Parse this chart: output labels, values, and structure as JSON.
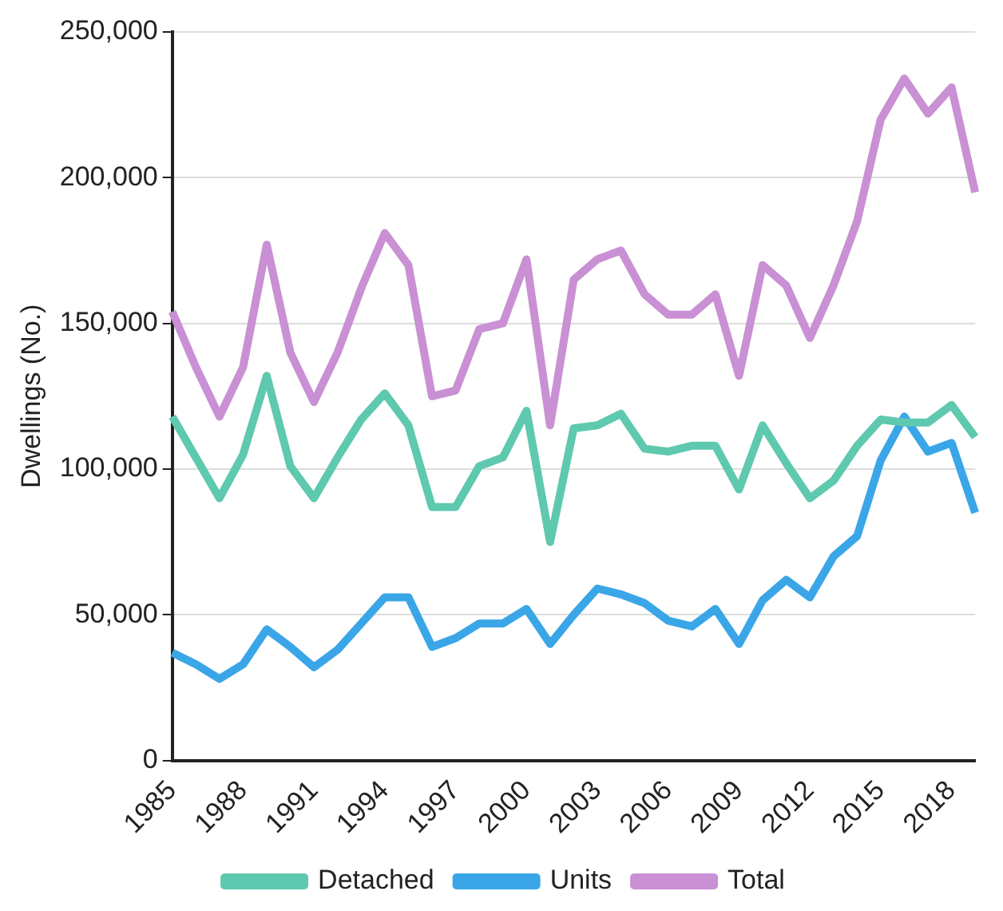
{
  "chart_data": {
    "type": "line",
    "ylabel": "Dwellings (No.)",
    "categories": [
      "1985",
      null,
      null,
      "1988",
      null,
      null,
      "1991",
      null,
      null,
      "1994",
      null,
      null,
      "1997",
      null,
      null,
      "2000",
      null,
      null,
      "2003",
      null,
      null,
      "2006",
      null,
      null,
      "2009",
      null,
      null,
      "2012",
      null,
      null,
      "2015",
      null,
      null,
      "2018",
      null
    ],
    "series": [
      {
        "name": "Detached",
        "color": "#5ec9ae",
        "values": [
          118000,
          104000,
          90000,
          105000,
          132000,
          101000,
          90000,
          104000,
          117000,
          126000,
          115000,
          87000,
          87000,
          101000,
          104000,
          120000,
          75000,
          114000,
          115000,
          119000,
          107000,
          106000,
          108000,
          108000,
          93000,
          115000,
          102000,
          90000,
          96000,
          108000,
          117000,
          116000,
          116000,
          122000,
          111000
        ]
      },
      {
        "name": "Units",
        "color": "#3aa6e8",
        "values": [
          37000,
          33000,
          28000,
          33000,
          45000,
          39000,
          32000,
          38000,
          47000,
          56000,
          56000,
          39000,
          42000,
          47000,
          47000,
          52000,
          40000,
          50000,
          59000,
          57000,
          54000,
          48000,
          46000,
          52000,
          40000,
          55000,
          62000,
          56000,
          70000,
          77000,
          103000,
          118000,
          106000,
          109000,
          85000
        ]
      },
      {
        "name": "Total",
        "color": "#c990d4",
        "values": [
          154000,
          135000,
          118000,
          135000,
          177000,
          140000,
          123000,
          140000,
          162000,
          181000,
          170000,
          125000,
          127000,
          148000,
          150000,
          172000,
          115000,
          165000,
          172000,
          175000,
          160000,
          153000,
          153000,
          160000,
          132000,
          170000,
          163000,
          145000,
          163000,
          185000,
          220000,
          234000,
          222000,
          231000,
          195000
        ]
      }
    ],
    "ylim": [
      0,
      250000
    ],
    "yticks": [
      0,
      {
        "value": 50000,
        "label": "50,000"
      },
      {
        "value": 100000,
        "label": "100,000"
      },
      {
        "value": 150000,
        "label": "150,000"
      },
      {
        "value": 200000,
        "label": "200,000"
      },
      {
        "value": 250000,
        "label": "250,000"
      }
    ],
    "grid": "y",
    "legend": "bottom",
    "marker": "none",
    "line_style": "solid"
  }
}
